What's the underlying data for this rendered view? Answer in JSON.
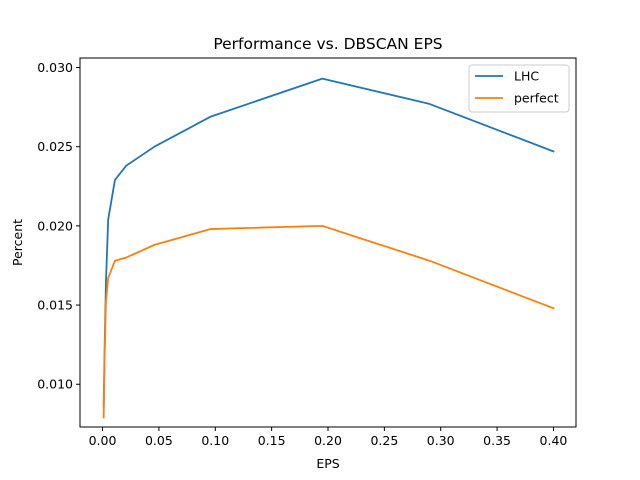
{
  "chart_data": {
    "type": "line",
    "title": "Performance vs. DBSCAN EPS",
    "xlabel": "EPS",
    "ylabel": "Percent",
    "xlim": [
      -0.02,
      0.42
    ],
    "ylim": [
      0.0073,
      0.0306
    ],
    "xticks": [
      0.0,
      0.05,
      0.1,
      0.15,
      0.2,
      0.25,
      0.3,
      0.35,
      0.4
    ],
    "xtick_labels": [
      "0.00",
      "0.05",
      "0.10",
      "0.15",
      "0.20",
      "0.25",
      "0.30",
      "0.35",
      "0.40"
    ],
    "yticks": [
      0.01,
      0.015,
      0.02,
      0.025,
      0.03
    ],
    "ytick_labels": [
      "0.010",
      "0.015",
      "0.020",
      "0.025",
      "0.030"
    ],
    "grid": false,
    "legend_position": "top-right",
    "series": [
      {
        "name": "LHC",
        "color": "#1f77b4",
        "x": [
          0.001,
          0.002,
          0.003,
          0.005,
          0.011,
          0.021,
          0.046,
          0.096,
          0.195,
          0.29,
          0.4
        ],
        "y": [
          0.0086,
          0.0128,
          0.0164,
          0.0204,
          0.0229,
          0.0238,
          0.025,
          0.0269,
          0.0293,
          0.0277,
          0.0247
        ]
      },
      {
        "name": "perfect",
        "color": "#ff7f0e",
        "x": [
          0.001,
          0.002,
          0.003,
          0.005,
          0.011,
          0.021,
          0.046,
          0.096,
          0.195,
          0.29,
          0.4
        ],
        "y": [
          0.0079,
          0.0123,
          0.0152,
          0.0167,
          0.0178,
          0.018,
          0.0188,
          0.0198,
          0.02,
          0.0178,
          0.0148
        ]
      }
    ]
  }
}
